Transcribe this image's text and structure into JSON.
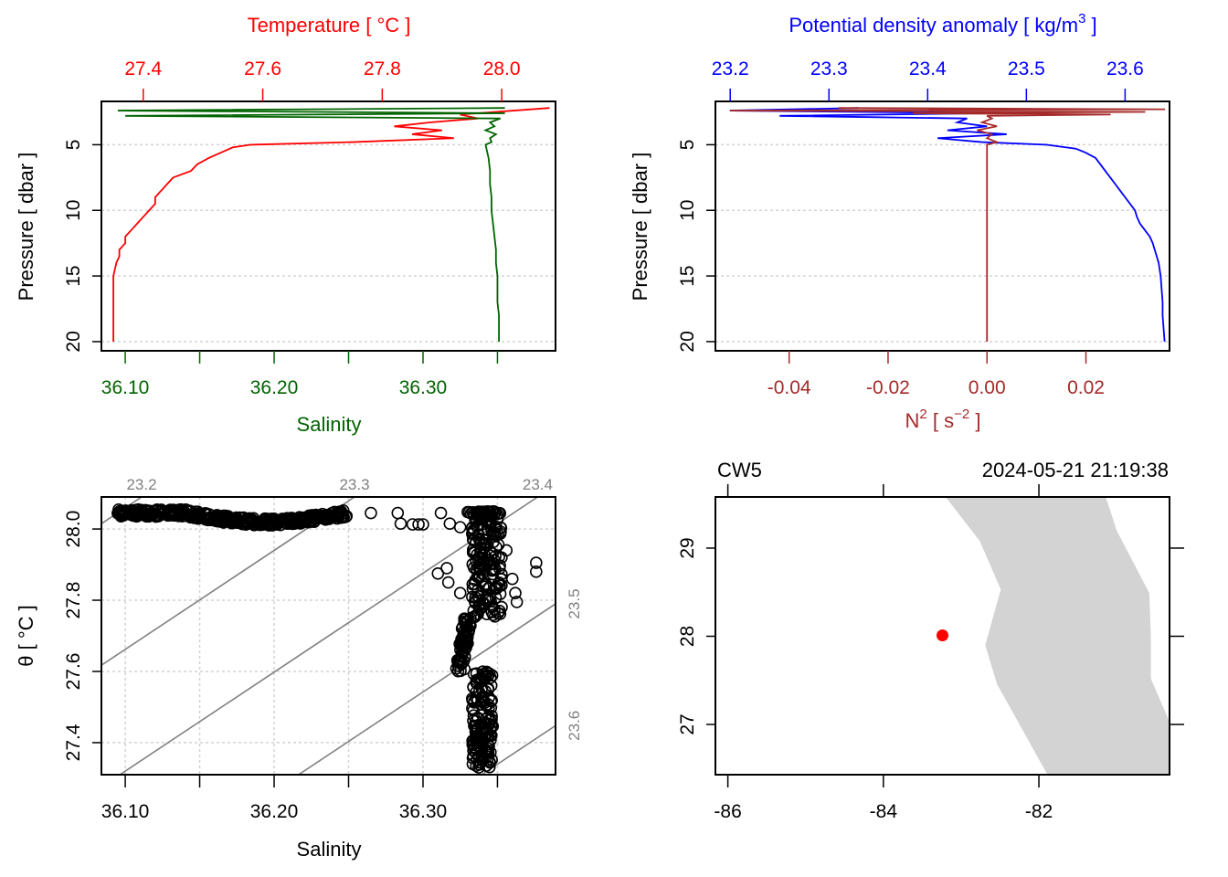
{
  "chart_data": [
    {
      "id": "profile-ts",
      "type": "line",
      "title": "",
      "top_axis": {
        "label": "Temperature [ °C ]",
        "ticks": [
          "27.4",
          "27.6",
          "27.8",
          "28.0"
        ],
        "tick_values": [
          27.4,
          27.6,
          27.8,
          28.0
        ],
        "color": "#ff0000"
      },
      "bottom_axis": {
        "label": "Salinity",
        "ticks": [
          "36.10",
          "",
          "36.20",
          "",
          "36.30",
          ""
        ],
        "tick_values": [
          36.1,
          36.15,
          36.2,
          36.25,
          36.3,
          36.35
        ],
        "color": "#006400"
      },
      "left_axis": {
        "label": "Pressure [ dbar ]",
        "ticks": [
          "5",
          "10",
          "15",
          "20"
        ],
        "tick_values": [
          5,
          10,
          15,
          20
        ],
        "reversed": true
      },
      "ylim": [
        1.7,
        20.7
      ],
      "temperature_xlim": [
        27.33,
        28.09
      ],
      "salinity_xlim": [
        36.084,
        36.389
      ],
      "grid": "horizontal-dotted",
      "series": [
        {
          "name": "Temperature",
          "color": "#ff0000",
          "pressure": [
            2.2,
            2.4,
            2.7,
            3.0,
            3.3,
            3.6,
            3.9,
            4.2,
            4.5,
            4.8,
            5.0,
            5.2,
            5.6,
            6.0,
            6.5,
            7.0,
            7.5,
            8.0,
            8.5,
            9.0,
            9.5,
            10.0,
            10.5,
            11.0,
            11.5,
            12.0,
            12.5,
            13.0,
            13.5,
            14.0,
            15.0,
            16.0,
            17.0,
            18.0,
            19.0,
            20.0
          ],
          "values": [
            28.08,
            28.02,
            27.93,
            27.96,
            27.88,
            27.82,
            27.9,
            27.85,
            27.92,
            27.75,
            27.58,
            27.55,
            27.53,
            27.51,
            27.49,
            27.48,
            27.45,
            27.44,
            27.43,
            27.42,
            27.42,
            27.41,
            27.4,
            27.39,
            27.38,
            27.37,
            27.37,
            27.36,
            27.36,
            27.355,
            27.35,
            27.35,
            27.35,
            27.35,
            27.35,
            27.35
          ]
        },
        {
          "name": "Salinity",
          "color": "#006400",
          "pressure": [
            2.2,
            2.4,
            2.6,
            2.8,
            3.0,
            3.3,
            3.6,
            3.9,
            4.2,
            4.5,
            4.8,
            5.0,
            5.5,
            6.0,
            7.0,
            8.0,
            9.0,
            10.0,
            11.0,
            12.0,
            13.0,
            14.0,
            15.0,
            16.0,
            17.0,
            18.0,
            19.0,
            20.0
          ],
          "values": [
            36.355,
            36.095,
            36.355,
            36.1,
            36.352,
            36.345,
            36.348,
            36.342,
            36.349,
            36.345,
            36.346,
            36.342,
            36.343,
            36.344,
            36.345,
            36.345,
            36.346,
            36.346,
            36.347,
            36.348,
            36.349,
            36.349,
            36.35,
            36.35,
            36.35,
            36.351,
            36.351,
            36.351
          ]
        }
      ]
    },
    {
      "id": "profile-density",
      "type": "line",
      "title": "",
      "top_axis": {
        "label": "Potential density anomaly [ kg/m³ ]",
        "label_main": "Potential density anomaly [ kg/m",
        "label_sup": "3",
        "label_end": " ]",
        "ticks": [
          "23.2",
          "23.3",
          "23.4",
          "23.5",
          "23.6"
        ],
        "tick_values": [
          23.2,
          23.3,
          23.4,
          23.5,
          23.6
        ],
        "color": "#0000ff"
      },
      "bottom_axis": {
        "label": "N² [ s⁻² ]",
        "label_main": "N",
        "label_sup": "2",
        "label_mid": " [ s",
        "label_sup2": "−2",
        "label_end": " ]",
        "ticks": [
          "-0.04",
          "-0.02",
          "0.00",
          "0.02"
        ],
        "tick_values": [
          -0.04,
          -0.02,
          0.0,
          0.02
        ],
        "color": "#a52a2a"
      },
      "left_axis": {
        "label": "Pressure [ dbar ]",
        "ticks": [
          "5",
          "10",
          "15",
          "20"
        ],
        "tick_values": [
          5,
          10,
          15,
          20
        ],
        "reversed": true
      },
      "ylim": [
        1.7,
        20.7
      ],
      "density_xlim": [
        23.185,
        23.645
      ],
      "n2_xlim": [
        -0.0549,
        0.0369
      ],
      "grid": "horizontal-dotted",
      "series": [
        {
          "name": "Potential density anomaly",
          "color": "#0000ff",
          "pressure": [
            2.2,
            2.4,
            2.6,
            2.8,
            3.0,
            3.3,
            3.6,
            3.9,
            4.2,
            4.5,
            4.8,
            5.0,
            5.3,
            5.6,
            6.0,
            6.5,
            7.0,
            7.5,
            8.0,
            8.5,
            9.0,
            9.5,
            10.0,
            10.5,
            11.0,
            11.5,
            12.0,
            12.5,
            13.0,
            13.5,
            14.0,
            15.0,
            16.0,
            17.0,
            18.0,
            19.0,
            20.0
          ],
          "values": [
            23.33,
            23.2,
            23.46,
            23.25,
            23.44,
            23.43,
            23.46,
            23.42,
            23.48,
            23.41,
            23.455,
            23.52,
            23.55,
            23.56,
            23.57,
            23.575,
            23.58,
            23.585,
            23.59,
            23.595,
            23.6,
            23.605,
            23.61,
            23.612,
            23.615,
            23.62,
            23.625,
            23.628,
            23.63,
            23.632,
            23.634,
            23.636,
            23.637,
            23.638,
            23.638,
            23.639,
            23.64
          ]
        },
        {
          "name": "N2",
          "color": "#a52a2a",
          "pressure": [
            2.2,
            2.3,
            2.4,
            2.5,
            2.6,
            2.7,
            2.8,
            3.0,
            3.3,
            3.6,
            3.9,
            4.2,
            4.5,
            4.8,
            5.0,
            6.0,
            7.0,
            8.0,
            9.0,
            10.0,
            11.0,
            12.0,
            13.0,
            14.0,
            15.0,
            16.0,
            17.0,
            18.0,
            19.0,
            20.0
          ],
          "values": [
            -0.03,
            0.036,
            -0.052,
            0.032,
            -0.015,
            0.025,
            0.0,
            0.001,
            -0.001,
            0.002,
            -0.002,
            0.001,
            0.0,
            0.002,
            0.0,
            0.0,
            0.0,
            0.0,
            0.0,
            0.0,
            0.0,
            0.0,
            0.0,
            0.0,
            0.0,
            0.0,
            0.0,
            0.0,
            0.0,
            0.0
          ]
        }
      ]
    },
    {
      "id": "ts-diagram",
      "type": "scatter",
      "title": "",
      "xlabel": "Salinity",
      "ylabel": "θ [ °C ]",
      "x_ticks": [
        "36.10",
        "",
        "36.20",
        "",
        "36.30",
        ""
      ],
      "x_tick_values": [
        36.1,
        36.15,
        36.2,
        36.25,
        36.3,
        36.35
      ],
      "y_ticks": [
        "27.4",
        "27.6",
        "27.8",
        "28.0"
      ],
      "y_tick_values": [
        27.4,
        27.6,
        27.8,
        28.0
      ],
      "xlim": [
        36.084,
        36.389
      ],
      "ylim": [
        27.31,
        28.09
      ],
      "grid": "dotted",
      "isopycnals": [
        {
          "label": "23.2",
          "position": "top"
        },
        {
          "label": "23.3",
          "position": "top"
        },
        {
          "label": "23.4",
          "position": "top"
        },
        {
          "label": "23.5",
          "position": "right"
        },
        {
          "label": "23.6",
          "position": "right"
        }
      ],
      "isopycnal_color": "#808080",
      "points_band_top": {
        "salinity_range": [
          36.095,
          36.25
        ],
        "theta_range": [
          28.01,
          28.05
        ]
      },
      "points_scattered": [
        [
          36.265,
          28.045
        ],
        [
          36.283,
          28.045
        ],
        [
          36.285,
          28.015
        ],
        [
          36.293,
          28.013
        ],
        [
          36.297,
          28.013
        ],
        [
          36.3,
          28.013
        ],
        [
          36.312,
          28.045
        ],
        [
          36.318,
          28.015
        ],
        [
          36.325,
          28.005
        ],
        [
          36.31,
          27.875
        ],
        [
          36.316,
          27.89
        ],
        [
          36.317,
          27.85
        ],
        [
          36.325,
          27.82
        ],
        [
          36.376,
          27.905
        ],
        [
          36.376,
          27.88
        ],
        [
          36.356,
          27.94
        ],
        [
          36.36,
          27.86
        ],
        [
          36.362,
          27.82
        ],
        [
          36.363,
          27.795
        ]
      ],
      "points_column": {
        "salinity_range": [
          36.33,
          36.356
        ],
        "theta_range": [
          27.33,
          28.05
        ]
      }
    },
    {
      "id": "station-map",
      "type": "map",
      "station": "CW5",
      "timestamp": "2024-05-21 21:19:38",
      "x_ticks": [
        "-86",
        "-84",
        "-82"
      ],
      "x_tick_values": [
        -86,
        -84,
        -82
      ],
      "y_ticks": [
        "27",
        "28",
        "29"
      ],
      "y_tick_values": [
        27,
        28,
        29
      ],
      "xlim": [
        -86.16,
        -80.32
      ],
      "ylim": [
        26.43,
        29.58
      ],
      "station_lon": -83.24,
      "station_lat": 28.01,
      "station_color": "#ff0000",
      "land_color": "#d3d3d3",
      "land_polygon": [
        [
          -83.2,
          29.58
        ],
        [
          -82.76,
          29.08
        ],
        [
          -82.49,
          28.53
        ],
        [
          -82.69,
          27.9
        ],
        [
          -82.54,
          27.46
        ],
        [
          -81.89,
          26.43
        ],
        [
          -80.32,
          26.43
        ],
        [
          -80.32,
          27.03
        ],
        [
          -80.56,
          27.52
        ],
        [
          -80.56,
          28.0
        ],
        [
          -80.58,
          28.49
        ],
        [
          -81.0,
          29.2
        ],
        [
          -81.14,
          29.58
        ]
      ]
    }
  ]
}
